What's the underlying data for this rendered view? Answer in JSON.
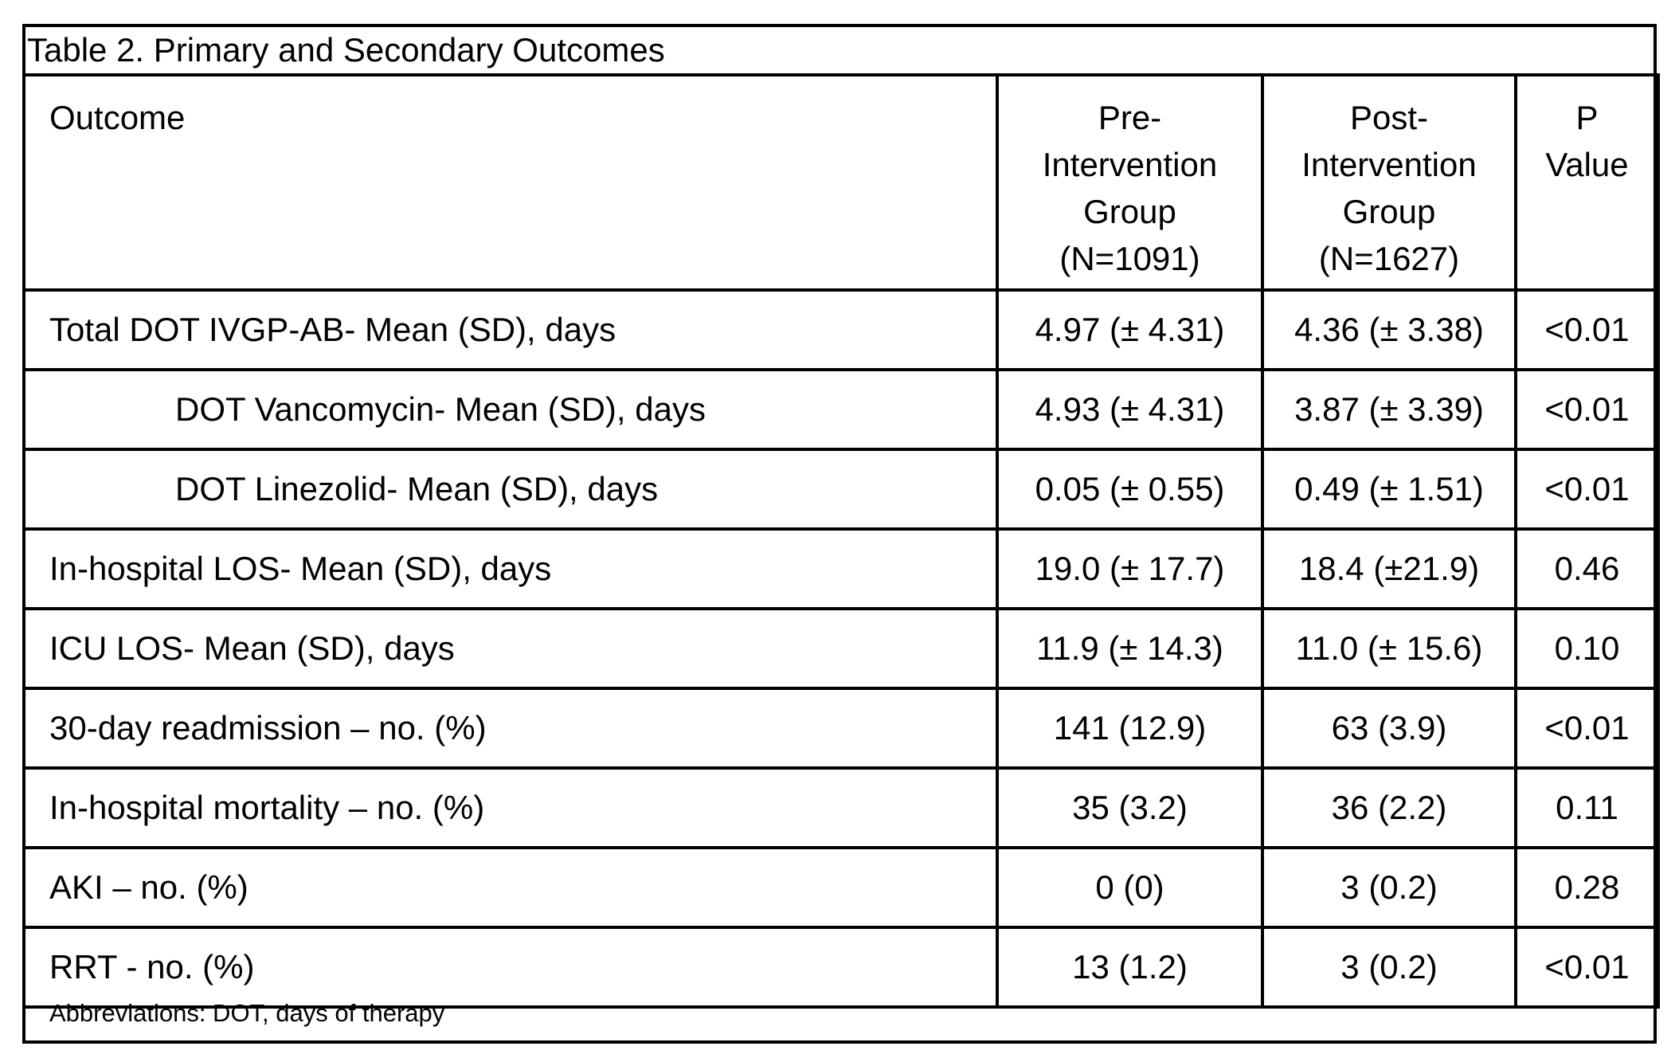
{
  "table": {
    "title": "Table 2. Primary and Secondary Outcomes",
    "headers": {
      "outcome": "Outcome",
      "pre": [
        "Pre-",
        "Intervention",
        "Group",
        "(N=1091)"
      ],
      "post": [
        "Post-",
        "Intervention",
        "Group",
        "(N=1627)"
      ],
      "p": [
        "P",
        "Value"
      ]
    },
    "rows": [
      {
        "outcome": "Total DOT IVGP-AB- Mean (SD), days",
        "pre": "4.97 (± 4.31)",
        "post": "4.36 (± 3.38)",
        "p": "<0.01"
      },
      {
        "outcome": "DOT Vancomycin- Mean (SD), days",
        "pre": "4.93 (± 4.31)",
        "post": "3.87 (± 3.39)",
        "p": "<0.01"
      },
      {
        "outcome": "DOT Linezolid- Mean (SD), days",
        "pre": "0.05 (± 0.55)",
        "post": "0.49 (± 1.51)",
        "p": "<0.01"
      },
      {
        "outcome": "In-hospital LOS- Mean (SD), days",
        "pre": "19.0 (± 17.7)",
        "post": "18.4 (±21.9)",
        "p": "0.46"
      },
      {
        "outcome": "ICU LOS- Mean (SD), days",
        "pre": "11.9 (± 14.3)",
        "post": "11.0 (± 15.6)",
        "p": "0.10"
      },
      {
        "outcome": "30-day readmission – no. (%)",
        "pre": "141 (12.9)",
        "post": "63 (3.9)",
        "p": "<0.01"
      },
      {
        "outcome": "In-hospital mortality – no. (%)",
        "pre": "35 (3.2)",
        "post": "36 (2.2)",
        "p": "0.11"
      },
      {
        "outcome": "AKI – no. (%)",
        "pre": "0 (0)",
        "post": "3 (0.2)",
        "p": "0.28"
      },
      {
        "outcome": "RRT - no. (%)",
        "pre": "13 (1.2)",
        "post": "3 (0.2)",
        "p": "<0.01"
      }
    ],
    "footnote": "Abbreviations: DOT, days of therapy"
  }
}
